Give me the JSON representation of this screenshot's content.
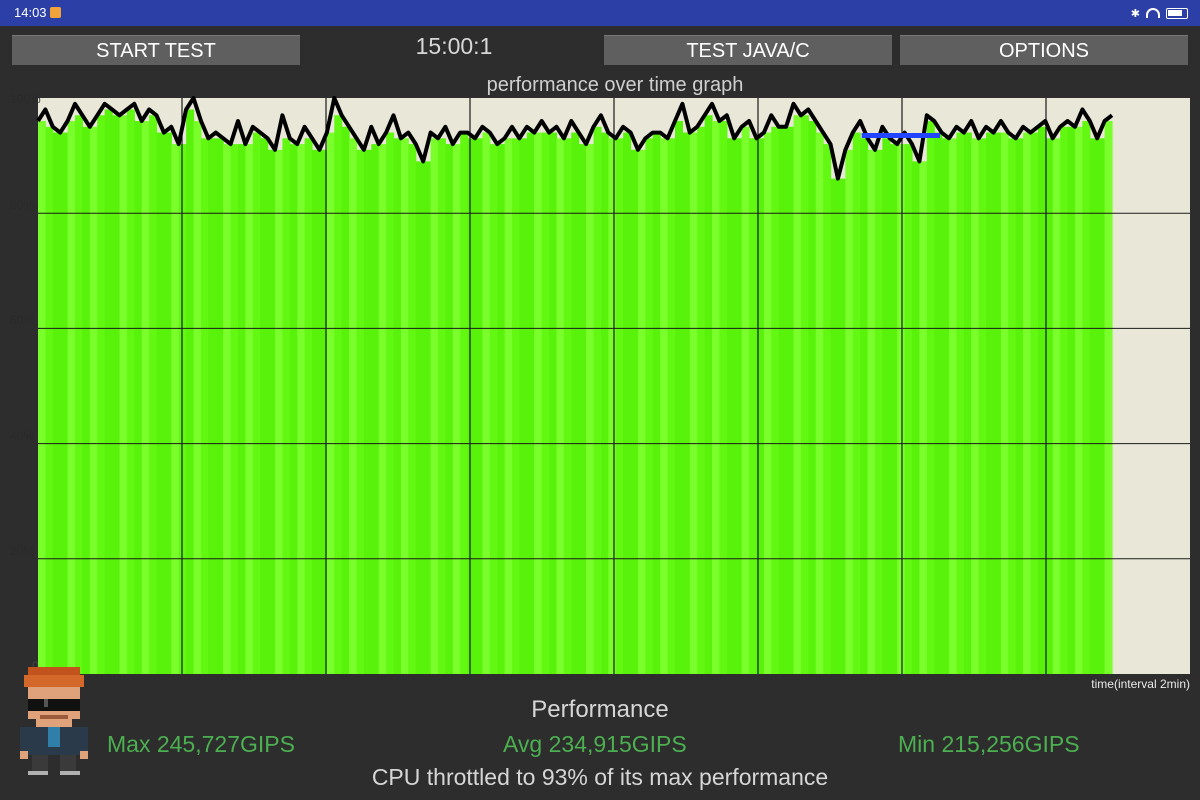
{
  "status_bar": {
    "time": "14:03"
  },
  "toolbar": {
    "start_label": "START TEST",
    "timer": "15:00:1",
    "java_label": "TEST JAVA/C",
    "options_label": "OPTIONS"
  },
  "chart_data": {
    "type": "area",
    "title": "performance over time graph",
    "xlabel": "time(interval 2min)",
    "ylabel": "",
    "ylim": [
      0,
      100
    ],
    "yticks": [
      "0",
      "20%",
      "40%",
      "60%",
      "80%",
      "100%"
    ],
    "x_interval": "2min",
    "colors": {
      "fill": "#66ff11",
      "line": "#000000",
      "marker": "#2244ff",
      "background": "#e9e7d8",
      "grid": "#111111"
    },
    "series": [
      {
        "values": [
          96,
          98,
          95,
          94,
          96,
          99,
          97,
          95,
          97,
          99,
          98,
          97,
          98,
          99,
          96,
          98,
          97,
          94,
          95,
          92,
          98,
          100,
          96,
          93,
          94,
          93,
          92,
          96,
          92,
          95,
          94,
          93,
          91,
          97,
          93,
          92,
          95,
          93,
          91,
          94,
          100,
          97,
          95,
          93,
          91,
          95,
          92,
          94,
          97,
          93,
          94,
          92,
          89,
          94,
          93,
          95,
          92,
          94,
          94,
          93,
          95,
          94,
          92,
          93,
          95,
          93,
          95,
          94,
          96,
          94,
          95,
          93,
          96,
          94,
          92,
          95,
          97,
          94,
          93,
          95,
          94,
          91,
          93,
          94,
          94,
          93,
          96,
          99,
          94,
          95,
          97,
          99,
          96,
          97,
          93,
          95,
          96,
          93,
          94,
          97,
          95,
          95,
          99,
          97,
          98,
          96,
          94,
          92,
          86,
          91,
          94,
          96,
          93,
          91,
          95,
          93,
          92,
          94,
          92,
          89,
          97,
          96,
          94,
          93,
          95,
          94,
          96,
          93,
          95,
          94,
          96,
          94,
          93,
          95,
          94,
          95,
          96,
          93,
          95,
          96,
          95,
          98,
          96,
          93,
          96,
          97
        ],
        "marker_segment": {
          "from": 0.715,
          "to": 0.783,
          "value": 93.5
        }
      }
    ],
    "data_end": 0.745
  },
  "stats": {
    "heading": "Performance",
    "max": "Max 245,727GIPS",
    "avg": "Avg 234,915GIPS",
    "min": "Min 215,256GIPS",
    "throttle": "CPU throttled to 93% of its max performance"
  }
}
